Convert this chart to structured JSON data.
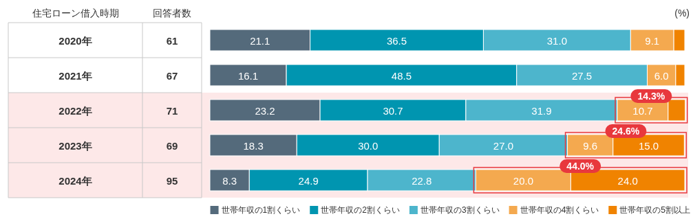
{
  "chart_data": {
    "type": "bar",
    "orientation": "horizontal",
    "stacked": true,
    "categories": [
      "2020年",
      "2021年",
      "2022年",
      "2023年",
      "2024年"
    ],
    "xlim": [
      0,
      100
    ],
    "series": [
      {
        "name": "世帯年収の1割くらい",
        "color": "#546a7b",
        "values": [
          21.1,
          16.1,
          23.2,
          18.3,
          8.3
        ],
        "value_labels": [
          "21.1",
          "16.1",
          "23.2",
          "18.3",
          "8.3"
        ]
      },
      {
        "name": "世帯年収の2割くらい",
        "color": "#0095b0",
        "values": [
          36.5,
          48.5,
          30.7,
          30.0,
          24.9
        ],
        "value_labels": [
          "36.5",
          "48.5",
          "30.7",
          "30.0",
          "24.9"
        ]
      },
      {
        "name": "世帯年収の3割くらい",
        "color": "#4db5cc",
        "values": [
          31.0,
          27.5,
          31.9,
          27.0,
          22.8
        ],
        "value_labels": [
          "31.0",
          "27.5",
          "31.9",
          "27.0",
          "22.8"
        ]
      },
      {
        "name": "世帯年収の4割くらい",
        "color": "#f4a94f",
        "values": [
          9.1,
          6.0,
          10.7,
          9.6,
          20.0
        ],
        "value_labels": [
          "9.1",
          "6.0",
          "10.7",
          "9.6",
          "20.0"
        ]
      },
      {
        "name": "世帯年収の5割以上",
        "color": "#f08300",
        "values": [
          2.3,
          1.9,
          3.6,
          15.0,
          24.0
        ],
        "value_labels": [
          null,
          null,
          null,
          "15.0",
          "24.0"
        ]
      }
    ],
    "bands": [
      {
        "axis": "y",
        "from": "2022年",
        "to": "2024年",
        "color": "#fde8e8"
      }
    ],
    "annotations": [
      "住宅ローン借入時期",
      "回答者数",
      "(%)",
      "61",
      "67",
      "71",
      "69",
      "95",
      "14.3%",
      "24.6%",
      "44.0%"
    ],
    "legend": "bottom right"
  }
}
